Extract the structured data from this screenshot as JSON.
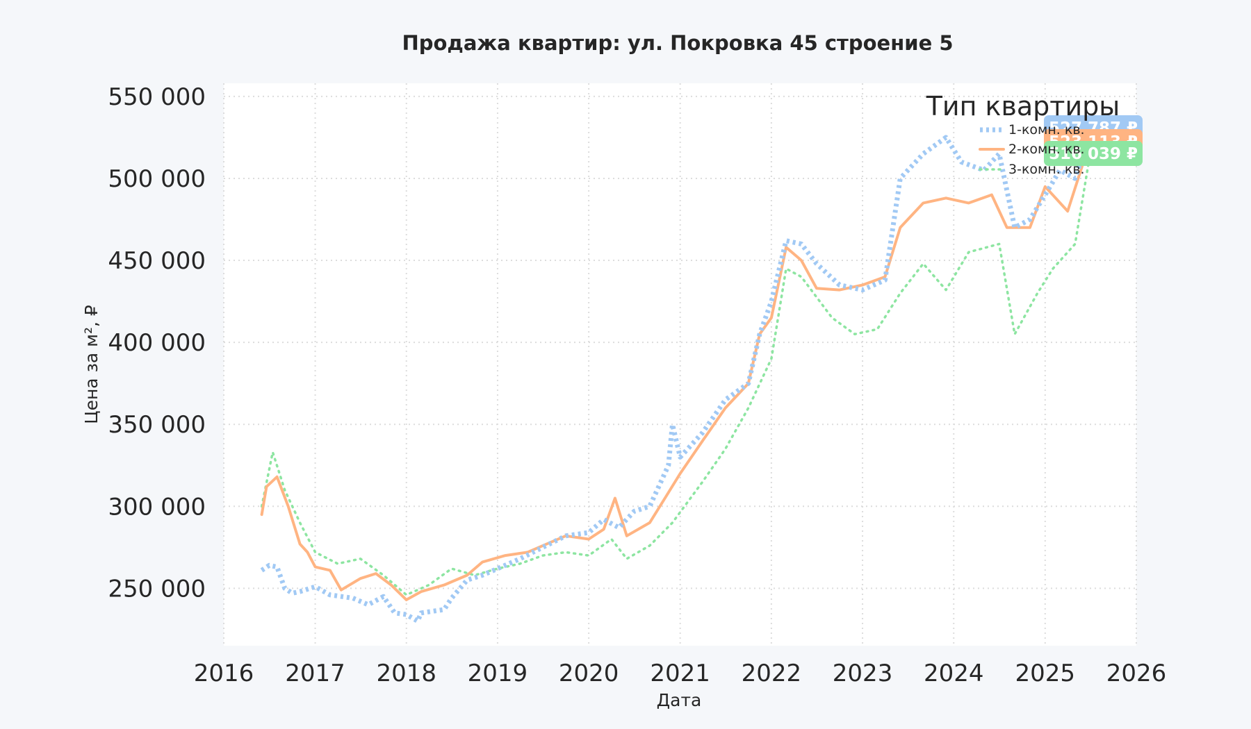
{
  "chart_data": {
    "type": "line",
    "title": "Продажа квартир: ул. Покровка 45 строение 5",
    "xlabel": "Дата",
    "ylabel": "Цена за м², ₽",
    "xlim": [
      "2016-01-01",
      "2026-01-01"
    ],
    "ylim": [
      215000,
      558000
    ],
    "grid": true,
    "x_ticks": [
      "2016",
      "2017",
      "2018",
      "2019",
      "2020",
      "2021",
      "2022",
      "2023",
      "2024",
      "2025",
      "2026"
    ],
    "y_ticks": [
      250000,
      300000,
      350000,
      400000,
      450000,
      500000,
      550000
    ],
    "y_tick_labels": [
      "250 000",
      "300 000",
      "350 000",
      "400 000",
      "450 000",
      "500 000",
      "550 000"
    ],
    "legend": {
      "title": "Тип квартиры",
      "placement": "top-right"
    },
    "series": [
      {
        "name": "1-комн. кв.",
        "color": "#a1c9f4",
        "style": "dotted-thick",
        "last_value_label": "527 787 ₽",
        "points": [
          [
            "2016-06-01",
            261000
          ],
          [
            "2016-07-01",
            264000
          ],
          [
            "2016-08-01",
            263000
          ],
          [
            "2016-09-01",
            250000
          ],
          [
            "2016-10-01",
            247000
          ],
          [
            "2016-11-01",
            248000
          ],
          [
            "2017-01-01",
            251000
          ],
          [
            "2017-03-01",
            246000
          ],
          [
            "2017-06-01",
            244000
          ],
          [
            "2017-08-01",
            240000
          ],
          [
            "2017-10-01",
            245000
          ],
          [
            "2017-11-15",
            235000
          ],
          [
            "2018-01-01",
            234000
          ],
          [
            "2018-02-15",
            230000
          ],
          [
            "2018-03-01",
            235000
          ],
          [
            "2018-06-01",
            237000
          ],
          [
            "2018-07-01",
            244000
          ],
          [
            "2018-09-01",
            255000
          ],
          [
            "2018-11-01",
            258000
          ],
          [
            "2019-01-01",
            262000
          ],
          [
            "2019-04-01",
            268000
          ],
          [
            "2019-07-01",
            275000
          ],
          [
            "2019-10-01",
            282000
          ],
          [
            "2020-01-01",
            284000
          ],
          [
            "2020-03-01",
            292000
          ],
          [
            "2020-05-01",
            287000
          ],
          [
            "2020-07-01",
            297000
          ],
          [
            "2020-09-01",
            300000
          ],
          [
            "2020-11-15",
            325000
          ],
          [
            "2020-12-01",
            350000
          ],
          [
            "2021-01-01",
            330000
          ],
          [
            "2021-04-01",
            345000
          ],
          [
            "2021-07-01",
            365000
          ],
          [
            "2021-10-01",
            375000
          ],
          [
            "2021-11-15",
            405000
          ],
          [
            "2022-01-01",
            425000
          ],
          [
            "2022-03-01",
            462000
          ],
          [
            "2022-05-01",
            460000
          ],
          [
            "2022-07-01",
            448000
          ],
          [
            "2022-10-01",
            435000
          ],
          [
            "2023-01-01",
            432000
          ],
          [
            "2023-04-01",
            438000
          ],
          [
            "2023-06-01",
            500000
          ],
          [
            "2023-09-01",
            515000
          ],
          [
            "2023-12-01",
            525000
          ],
          [
            "2024-02-01",
            510000
          ],
          [
            "2024-05-01",
            505000
          ],
          [
            "2024-07-01",
            515000
          ],
          [
            "2024-09-01",
            470000
          ],
          [
            "2024-11-01",
            475000
          ],
          [
            "2025-01-01",
            490000
          ],
          [
            "2025-03-01",
            505000
          ],
          [
            "2025-05-01",
            500000
          ],
          [
            "2025-07-01",
            527787
          ]
        ]
      },
      {
        "name": "2-комн. кв.",
        "color": "#ffb482",
        "style": "solid",
        "last_value_label": "523 113 ₽",
        "points": [
          [
            "2016-06-01",
            295000
          ],
          [
            "2016-06-20",
            312000
          ],
          [
            "2016-08-01",
            318000
          ],
          [
            "2016-09-15",
            300000
          ],
          [
            "2016-11-01",
            277000
          ],
          [
            "2016-12-01",
            272000
          ],
          [
            "2017-01-01",
            263000
          ],
          [
            "2017-03-01",
            261000
          ],
          [
            "2017-04-15",
            249000
          ],
          [
            "2017-07-01",
            256000
          ],
          [
            "2017-09-01",
            259000
          ],
          [
            "2017-11-01",
            252000
          ],
          [
            "2018-01-01",
            243000
          ],
          [
            "2018-03-01",
            248000
          ],
          [
            "2018-06-01",
            252000
          ],
          [
            "2018-09-01",
            258000
          ],
          [
            "2018-11-01",
            266000
          ],
          [
            "2019-02-01",
            270000
          ],
          [
            "2019-05-01",
            272000
          ],
          [
            "2019-07-01",
            276000
          ],
          [
            "2019-10-01",
            282000
          ],
          [
            "2020-01-01",
            280000
          ],
          [
            "2020-03-01",
            286000
          ],
          [
            "2020-04-15",
            305000
          ],
          [
            "2020-06-01",
            282000
          ],
          [
            "2020-09-01",
            290000
          ],
          [
            "2020-11-01",
            305000
          ],
          [
            "2021-01-01",
            320000
          ],
          [
            "2021-04-01",
            340000
          ],
          [
            "2021-07-01",
            360000
          ],
          [
            "2021-10-01",
            375000
          ],
          [
            "2021-11-15",
            405000
          ],
          [
            "2022-01-01",
            415000
          ],
          [
            "2022-03-01",
            458000
          ],
          [
            "2022-05-01",
            450000
          ],
          [
            "2022-07-01",
            433000
          ],
          [
            "2022-10-01",
            432000
          ],
          [
            "2023-01-01",
            435000
          ],
          [
            "2023-04-01",
            440000
          ],
          [
            "2023-06-01",
            470000
          ],
          [
            "2023-09-01",
            485000
          ],
          [
            "2023-12-01",
            488000
          ],
          [
            "2024-03-01",
            485000
          ],
          [
            "2024-06-01",
            490000
          ],
          [
            "2024-08-01",
            470000
          ],
          [
            "2024-11-01",
            470000
          ],
          [
            "2025-01-01",
            495000
          ],
          [
            "2025-04-01",
            480000
          ],
          [
            "2025-07-01",
            523113
          ]
        ]
      },
      {
        "name": "3-комн. кв.",
        "color": "#8de5a1",
        "style": "dotted",
        "last_value_label": "516 039 ₽",
        "points": [
          [
            "2016-06-01",
            300000
          ],
          [
            "2016-07-15",
            333000
          ],
          [
            "2016-09-01",
            310000
          ],
          [
            "2016-11-01",
            290000
          ],
          [
            "2017-01-01",
            272000
          ],
          [
            "2017-04-01",
            265000
          ],
          [
            "2017-07-01",
            268000
          ],
          [
            "2017-10-01",
            258000
          ],
          [
            "2018-01-01",
            246000
          ],
          [
            "2018-04-01",
            252000
          ],
          [
            "2018-07-01",
            262000
          ],
          [
            "2018-10-01",
            258000
          ],
          [
            "2019-01-01",
            262000
          ],
          [
            "2019-04-01",
            265000
          ],
          [
            "2019-07-01",
            270000
          ],
          [
            "2019-10-01",
            272000
          ],
          [
            "2020-01-01",
            270000
          ],
          [
            "2020-04-01",
            280000
          ],
          [
            "2020-06-01",
            268000
          ],
          [
            "2020-09-01",
            276000
          ],
          [
            "2020-12-01",
            290000
          ],
          [
            "2021-04-01",
            315000
          ],
          [
            "2021-07-01",
            335000
          ],
          [
            "2021-10-01",
            360000
          ],
          [
            "2022-01-01",
            390000
          ],
          [
            "2022-03-01",
            445000
          ],
          [
            "2022-05-01",
            440000
          ],
          [
            "2022-09-01",
            415000
          ],
          [
            "2022-12-01",
            405000
          ],
          [
            "2023-03-01",
            408000
          ],
          [
            "2023-06-01",
            430000
          ],
          [
            "2023-09-01",
            448000
          ],
          [
            "2023-12-01",
            432000
          ],
          [
            "2024-03-01",
            455000
          ],
          [
            "2024-07-01",
            460000
          ],
          [
            "2024-09-01",
            405000
          ],
          [
            "2024-12-01",
            430000
          ],
          [
            "2025-02-01",
            445000
          ],
          [
            "2025-05-01",
            460000
          ],
          [
            "2025-07-01",
            516039
          ]
        ]
      }
    ]
  }
}
